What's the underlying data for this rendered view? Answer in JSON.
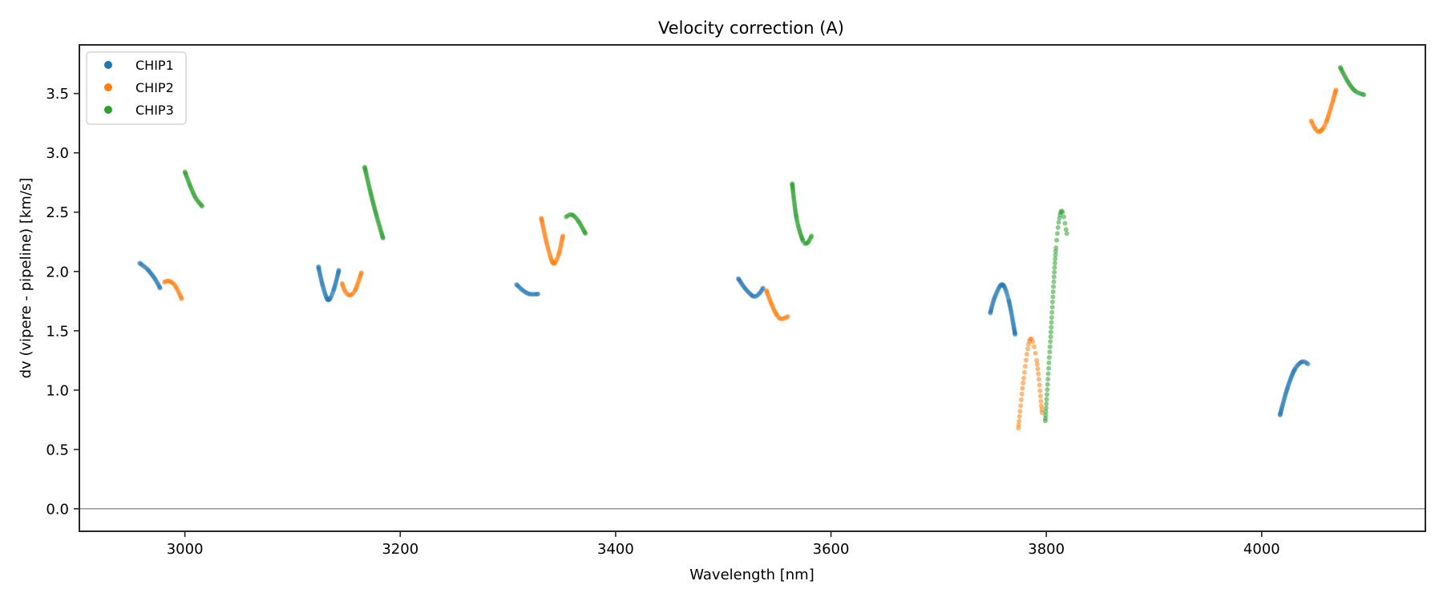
{
  "chart_data": {
    "type": "scatter",
    "title": "Velocity correction (A)",
    "xlabel": "Wavelength [nm]",
    "ylabel": "dv (vipere - pipeline) [km/s]",
    "xlim": [
      2902,
      4152
    ],
    "ylim": [
      -0.19,
      3.91
    ],
    "xticks": [
      3000,
      3200,
      3400,
      3600,
      3800,
      4000
    ],
    "xtick_labels": [
      "3000",
      "3200",
      "3400",
      "3600",
      "3800",
      "4000"
    ],
    "yticks": [
      0.0,
      0.5,
      1.0,
      1.5,
      2.0,
      2.5,
      3.0,
      3.5
    ],
    "ytick_labels": [
      "0.0",
      "0.5",
      "1.0",
      "1.5",
      "2.0",
      "2.5",
      "3.0",
      "3.5"
    ],
    "grid": false,
    "reference_line": {
      "y": 0.0,
      "color": "#808080"
    },
    "legend": {
      "placement": "top-left",
      "entries": [
        "CHIP1",
        "CHIP2",
        "CHIP3"
      ]
    },
    "series": [
      {
        "name": "CHIP1",
        "color": "#1f77b4",
        "segments": [
          [
            [
              2958,
              2.07
            ],
            [
              2965,
              2.02
            ],
            [
              2972,
              1.94
            ],
            [
              2977,
              1.86
            ]
          ],
          [
            [
              3124,
              2.04
            ],
            [
              3128,
              1.88
            ],
            [
              3133,
              1.76
            ],
            [
              3138,
              1.84
            ],
            [
              3143,
              2.01
            ]
          ],
          [
            [
              3308,
              1.89
            ],
            [
              3314,
              1.84
            ],
            [
              3320,
              1.81
            ],
            [
              3328,
              1.81
            ]
          ],
          [
            [
              3514,
              1.94
            ],
            [
              3520,
              1.86
            ],
            [
              3528,
              1.79
            ],
            [
              3533,
              1.81
            ],
            [
              3537,
              1.86
            ]
          ],
          [
            [
              3748,
              1.65
            ],
            [
              3752,
              1.78
            ],
            [
              3759,
              1.89
            ],
            [
              3765,
              1.76
            ],
            [
              3771,
              1.47
            ]
          ],
          [
            [
              4017,
              0.79
            ],
            [
              4024,
              1.02
            ],
            [
              4031,
              1.18
            ],
            [
              4038,
              1.24
            ],
            [
              4043,
              1.22
            ]
          ]
        ]
      },
      {
        "name": "CHIP2",
        "color": "#ff7f0e",
        "segments": [
          [
            [
              2981,
              1.91
            ],
            [
              2985,
              1.92
            ],
            [
              2991,
              1.88
            ],
            [
              2997,
              1.77
            ]
          ],
          [
            [
              3146,
              1.9
            ],
            [
              3149,
              1.83
            ],
            [
              3153,
              1.8
            ],
            [
              3158,
              1.84
            ],
            [
              3164,
              1.99
            ]
          ],
          [
            [
              3331,
              2.45
            ],
            [
              3336,
              2.24
            ],
            [
              3342,
              2.07
            ],
            [
              3347,
              2.14
            ],
            [
              3351,
              2.3
            ]
          ],
          [
            [
              3540,
              1.84
            ],
            [
              3545,
              1.72
            ],
            [
              3550,
              1.63
            ],
            [
              3554,
              1.6
            ],
            [
              3560,
              1.62
            ]
          ],
          [
            [
              3774,
              0.68
            ],
            [
              3779,
              1.1
            ],
            [
              3785,
              1.43
            ],
            [
              3791,
              1.25
            ],
            [
              3796,
              0.81
            ]
          ],
          [
            [
              4046,
              3.27
            ],
            [
              4050,
              3.2
            ],
            [
              4054,
              3.18
            ],
            [
              4060,
              3.26
            ],
            [
              4069,
              3.53
            ]
          ]
        ]
      },
      {
        "name": "CHIP3",
        "color": "#2ca02c",
        "segments": [
          [
            [
              3000,
              2.84
            ],
            [
              3005,
              2.72
            ],
            [
              3010,
              2.62
            ],
            [
              3016,
              2.55
            ]
          ],
          [
            [
              3167,
              2.88
            ],
            [
              3172,
              2.68
            ],
            [
              3178,
              2.47
            ],
            [
              3184,
              2.28
            ]
          ],
          [
            [
              3354,
              2.46
            ],
            [
              3359,
              2.48
            ],
            [
              3365,
              2.43
            ],
            [
              3372,
              2.32
            ]
          ],
          [
            [
              3564,
              2.74
            ],
            [
              3568,
              2.45
            ],
            [
              3574,
              2.26
            ],
            [
              3578,
              2.24
            ],
            [
              3582,
              2.3
            ]
          ],
          [
            [
              3799,
              0.74
            ],
            [
              3804,
              1.45
            ],
            [
              3809,
              2.2
            ],
            [
              3814,
              2.51
            ],
            [
              3819,
              2.32
            ]
          ],
          [
            [
              4073,
              3.72
            ],
            [
              4080,
              3.6
            ],
            [
              4087,
              3.52
            ],
            [
              4095,
              3.49
            ]
          ]
        ]
      }
    ]
  }
}
